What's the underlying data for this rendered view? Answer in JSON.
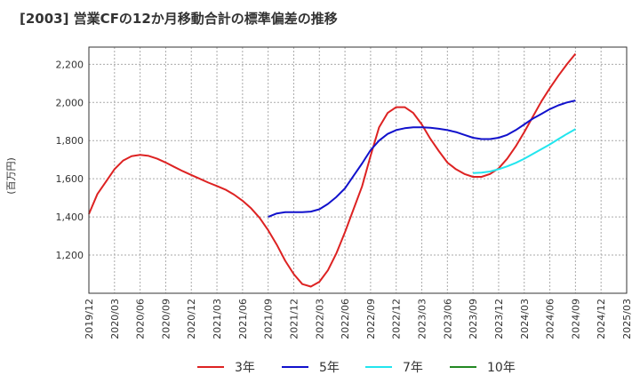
{
  "chart_data": {
    "type": "line",
    "title": "[2003]  営業CFの12か月移動合計の標準偏差の推移",
    "ylabel": "(百万円)",
    "xlabel": "",
    "ylim": [
      1000,
      2290
    ],
    "yticks": [
      1200,
      1400,
      1600,
      1800,
      2000,
      2200
    ],
    "ytick_labels": [
      "1,200",
      "1,400",
      "1,600",
      "1,800",
      "2,000",
      "2,200"
    ],
    "xticks": [
      "2019/12",
      "2020/03",
      "2020/06",
      "2020/09",
      "2020/12",
      "2021/03",
      "2021/06",
      "2021/09",
      "2021/12",
      "2022/03",
      "2022/06",
      "2022/09",
      "2022/12",
      "2023/03",
      "2023/06",
      "2023/09",
      "2023/12",
      "2024/03",
      "2024/06",
      "2024/09",
      "2024/12",
      "2025/03"
    ],
    "grid": true,
    "legend_position": "bottom",
    "series": [
      {
        "name": "3年",
        "color": "#dd2222",
        "x": [
          "2019/12",
          "2020/01",
          "2020/02",
          "2020/03",
          "2020/04",
          "2020/05",
          "2020/06",
          "2020/07",
          "2020/08",
          "2020/09",
          "2020/10",
          "2020/11",
          "2020/12",
          "2021/01",
          "2021/02",
          "2021/03",
          "2021/04",
          "2021/05",
          "2021/06",
          "2021/07",
          "2021/08",
          "2021/09",
          "2021/10",
          "2021/11",
          "2021/12",
          "2022/01",
          "2022/02",
          "2022/03",
          "2022/04",
          "2022/05",
          "2022/06",
          "2022/07",
          "2022/08",
          "2022/09",
          "2022/10",
          "2022/11",
          "2022/12",
          "2023/01",
          "2023/02",
          "2023/03",
          "2023/04",
          "2023/05",
          "2023/06",
          "2023/07",
          "2023/08",
          "2023/09",
          "2023/10",
          "2023/11",
          "2023/12",
          "2024/01",
          "2024/02",
          "2024/03",
          "2024/04",
          "2024/05",
          "2024/06",
          "2024/07",
          "2024/08",
          "2024/09"
        ],
        "values": [
          1415,
          1520,
          1585,
          1650,
          1695,
          1718,
          1725,
          1720,
          1705,
          1685,
          1662,
          1640,
          1620,
          1600,
          1580,
          1562,
          1543,
          1517,
          1485,
          1445,
          1395,
          1330,
          1255,
          1170,
          1100,
          1048,
          1035,
          1060,
          1120,
          1210,
          1320,
          1440,
          1560,
          1720,
          1870,
          1945,
          1975,
          1975,
          1945,
          1885,
          1810,
          1745,
          1685,
          1650,
          1625,
          1610,
          1610,
          1625,
          1655,
          1705,
          1770,
          1845,
          1925,
          2005,
          2075,
          2140,
          2200,
          2255
        ]
      },
      {
        "name": "5年",
        "color": "#1111cc",
        "x": [
          "2021/09",
          "2021/10",
          "2021/11",
          "2021/12",
          "2022/01",
          "2022/02",
          "2022/03",
          "2022/04",
          "2022/05",
          "2022/06",
          "2022/07",
          "2022/08",
          "2022/09",
          "2022/10",
          "2022/11",
          "2022/12",
          "2023/01",
          "2023/02",
          "2023/03",
          "2023/04",
          "2023/05",
          "2023/06",
          "2023/07",
          "2023/08",
          "2023/09",
          "2023/10",
          "2023/11",
          "2023/12",
          "2024/01",
          "2024/02",
          "2024/03",
          "2024/04",
          "2024/05",
          "2024/06",
          "2024/07",
          "2024/08",
          "2024/09"
        ],
        "values": [
          1400,
          1418,
          1425,
          1425,
          1425,
          1428,
          1440,
          1468,
          1505,
          1550,
          1615,
          1680,
          1750,
          1800,
          1835,
          1855,
          1865,
          1870,
          1870,
          1867,
          1862,
          1855,
          1845,
          1830,
          1815,
          1808,
          1808,
          1815,
          1830,
          1855,
          1885,
          1915,
          1940,
          1965,
          1985,
          2000,
          2010
        ]
      },
      {
        "name": "7年",
        "color": "#22e5ee",
        "x": [
          "2023/09",
          "2023/10",
          "2023/11",
          "2023/12",
          "2024/01",
          "2024/02",
          "2024/03",
          "2024/04",
          "2024/05",
          "2024/06",
          "2024/07",
          "2024/08",
          "2024/09"
        ],
        "values": [
          1630,
          1632,
          1638,
          1650,
          1665,
          1683,
          1705,
          1730,
          1755,
          1780,
          1808,
          1835,
          1860
        ]
      },
      {
        "name": "10年",
        "color": "#228822",
        "x": [],
        "values": []
      }
    ]
  }
}
